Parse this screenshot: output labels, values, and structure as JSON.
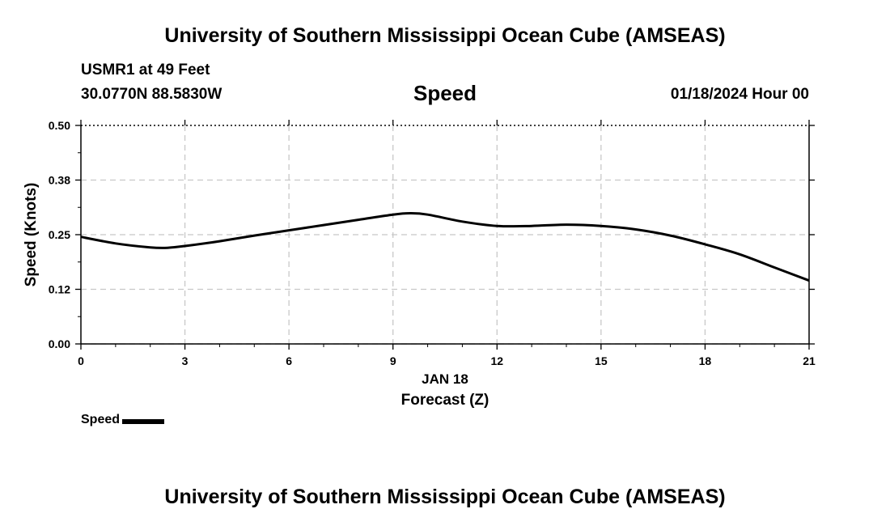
{
  "header": {
    "title": "University of Southern Mississippi Ocean Cube (AMSEAS)",
    "station": "USMR1 at 49 Feet",
    "coords": "30.0770N  88.5830W",
    "subtitle": "Speed",
    "datetime": "01/18/2024 Hour 00"
  },
  "footer": {
    "title": "University of Southern Mississippi Ocean Cube (AMSEAS)"
  },
  "legend": {
    "label": "Speed"
  },
  "chart_data": {
    "type": "line",
    "title": "Speed",
    "xlabel": "Forecast (Z)",
    "xlabel_date": "JAN 18",
    "ylabel": "Speed (Knots)",
    "xlim": [
      0,
      21
    ],
    "ylim": [
      0,
      0.5
    ],
    "x_ticks": [
      0,
      3,
      6,
      9,
      12,
      15,
      18,
      21
    ],
    "x_tick_labels": [
      "0",
      "3",
      "6",
      "9",
      "12",
      "15",
      "18",
      "21"
    ],
    "y_ticks": [
      0,
      0.125,
      0.25,
      0.375,
      0.5
    ],
    "y_tick_labels": [
      "0.00",
      "0.12",
      "0.25",
      "0.38",
      "0.50"
    ],
    "grid": true,
    "legend_position": "bottom-left",
    "series": [
      {
        "name": "Speed",
        "color": "#000000",
        "x": [
          0,
          1,
          2,
          2.5,
          3,
          4,
          5,
          6,
          7,
          8,
          9,
          9.5,
          10,
          11,
          12,
          13,
          14,
          15,
          16,
          17,
          18,
          19,
          20,
          21
        ],
        "values": [
          0.245,
          0.23,
          0.221,
          0.22,
          0.224,
          0.235,
          0.248,
          0.26,
          0.272,
          0.284,
          0.296,
          0.299,
          0.296,
          0.28,
          0.27,
          0.27,
          0.273,
          0.27,
          0.262,
          0.248,
          0.228,
          0.205,
          0.175,
          0.145
        ]
      }
    ]
  }
}
